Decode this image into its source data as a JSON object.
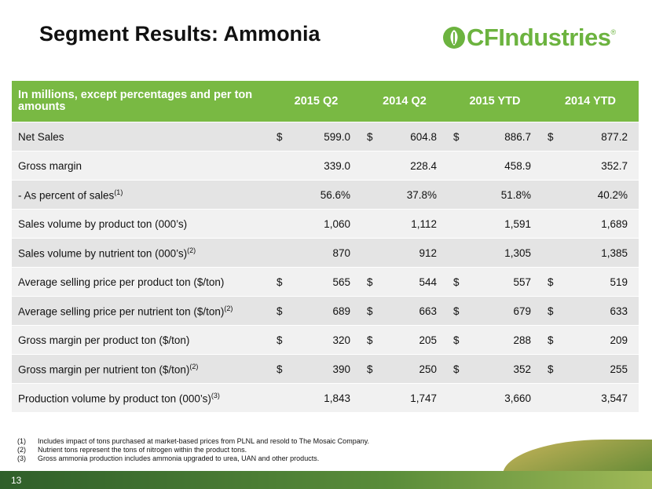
{
  "header": {
    "title": "Segment Results: Ammonia",
    "logo": "CFIndustries",
    "logo_mark": "®"
  },
  "table": {
    "columns": [
      "In millions, except percentages and per ton amounts",
      "2015 Q2",
      "2014 Q2",
      "2015 YTD",
      "2014 YTD"
    ],
    "rows": [
      {
        "label": "Net Sales",
        "cells": [
          {
            "currency": "$",
            "value": "599.0"
          },
          {
            "currency": "$",
            "value": "604.8"
          },
          {
            "currency": "$",
            "value": "886.7"
          },
          {
            "currency": "$",
            "value": "877.2"
          }
        ]
      },
      {
        "label": "Gross margin",
        "cells": [
          {
            "value": "339.0"
          },
          {
            "value": "228.4"
          },
          {
            "value": "458.9"
          },
          {
            "value": "352.7"
          }
        ]
      },
      {
        "label": "- As percent of sales",
        "note": "(1)",
        "cells": [
          {
            "value": "56.6%"
          },
          {
            "value": "37.8%"
          },
          {
            "value": "51.8%"
          },
          {
            "value": "40.2%"
          }
        ]
      },
      {
        "label": "Sales volume by product ton (000’s)",
        "cells": [
          {
            "value": "1,060"
          },
          {
            "value": "1,112"
          },
          {
            "value": "1,591"
          },
          {
            "value": "1,689"
          }
        ]
      },
      {
        "label": "Sales volume by nutrient ton (000’s)",
        "note": "(2)",
        "cells": [
          {
            "value": "870"
          },
          {
            "value": "912"
          },
          {
            "value": "1,305"
          },
          {
            "value": "1,385"
          }
        ]
      },
      {
        "label": "Average selling price per product ton ($/ton)",
        "cells": [
          {
            "currency": "$",
            "value": "565"
          },
          {
            "currency": "$",
            "value": "544"
          },
          {
            "currency": "$",
            "value": "557"
          },
          {
            "currency": "$",
            "value": "519"
          }
        ]
      },
      {
        "label": "Average selling price per nutrient ton ($/ton)",
        "note": "(2)",
        "cells": [
          {
            "currency": "$",
            "value": "689"
          },
          {
            "currency": "$",
            "value": "663"
          },
          {
            "currency": "$",
            "value": "679"
          },
          {
            "currency": "$",
            "value": "633"
          }
        ]
      },
      {
        "label": "Gross margin per product ton ($/ton)",
        "cells": [
          {
            "currency": "$",
            "value": "320"
          },
          {
            "currency": "$",
            "value": "205"
          },
          {
            "currency": "$",
            "value": "288"
          },
          {
            "currency": "$",
            "value": "209"
          }
        ]
      },
      {
        "label": "Gross margin per nutrient ton ($/ton)",
        "note": "(2)",
        "cells": [
          {
            "currency": "$",
            "value": "390"
          },
          {
            "currency": "$",
            "value": "250"
          },
          {
            "currency": "$",
            "value": "352"
          },
          {
            "currency": "$",
            "value": "255"
          }
        ]
      },
      {
        "label": "Production volume by product ton (000’s)",
        "note": "(3)",
        "cells": [
          {
            "value": "1,843"
          },
          {
            "value": "1,747"
          },
          {
            "value": "3,660"
          },
          {
            "value": "3,547"
          }
        ]
      }
    ]
  },
  "footnotes": [
    {
      "marker": "(1)",
      "text": "Includes impact of tons purchased at market-based prices from PLNL and resold to The Mosaic Company."
    },
    {
      "marker": "(2)",
      "text": "Nutrient tons represent the tons of nitrogen within the product tons."
    },
    {
      "marker": "(3)",
      "text": "Gross ammonia production includes ammonia upgraded to urea, UAN and other products."
    }
  ],
  "page_number": "13"
}
